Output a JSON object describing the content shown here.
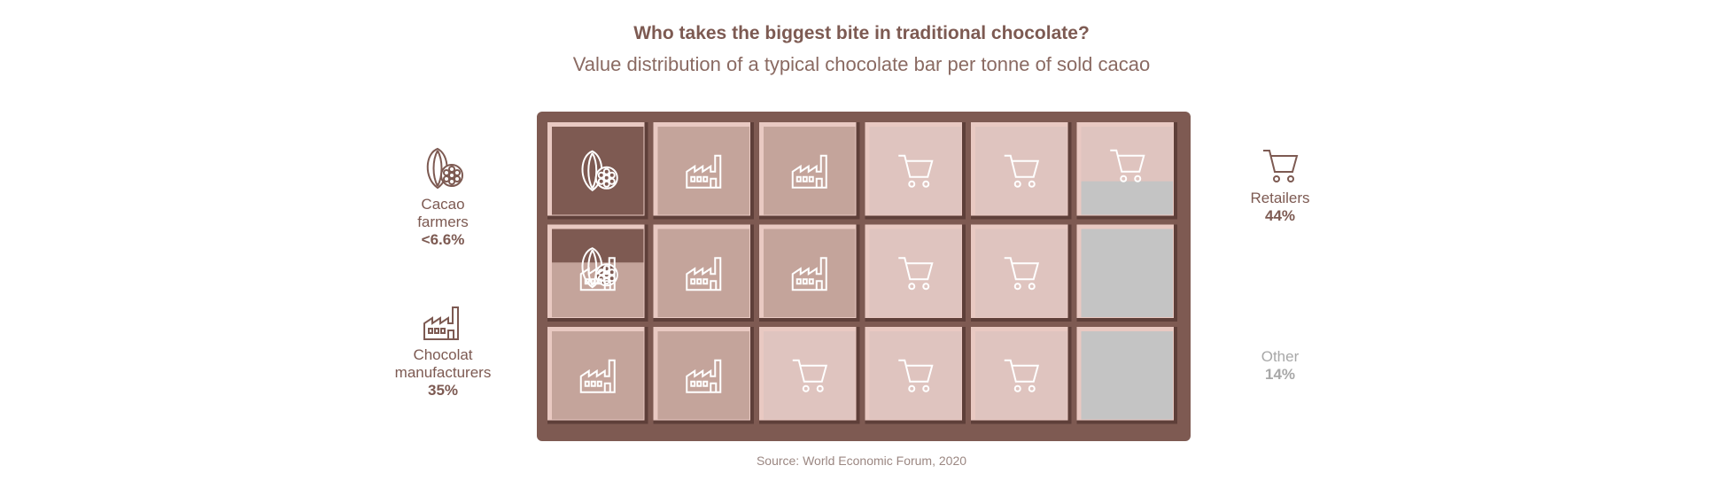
{
  "title": "Who takes the biggest bite in traditional chocolate?",
  "subtitle": "Value distribution of a typical chocolate bar per tonne of sold cacao",
  "source": "Source: World Economic Forum, 2020",
  "colors": {
    "bar_frame": "#7e5a52",
    "farmers": "#7e5a52",
    "manufacturers": "#c4a49b",
    "retailers": "#dfc4bf",
    "other": "#c4c4c4",
    "text": "#7d5a52",
    "other_text": "#a8a8a8"
  },
  "legend": {
    "farmers": {
      "icon": "cacao-pod-icon",
      "name": "Cacao\nfarmers",
      "value": "<6.6%"
    },
    "manufacturers": {
      "icon": "factory-icon",
      "name": "Chocolat\nmanufacturers",
      "value": "35%"
    },
    "retailers": {
      "icon": "shopping-cart-icon",
      "name": "Retailers",
      "value": "44%"
    },
    "other": {
      "name": "Other",
      "value": "14%"
    }
  },
  "chart_data": {
    "type": "waffle",
    "grid": {
      "rows": 3,
      "cols": 6
    },
    "series": [
      {
        "name": "Cacao farmers",
        "value": 6.6,
        "label": "<6.6%"
      },
      {
        "name": "Chocolat manufacturers",
        "value": 35,
        "label": "35%"
      },
      {
        "name": "Retailers",
        "value": 44,
        "label": "44%"
      },
      {
        "name": "Other",
        "value": 14,
        "label": "14%"
      }
    ],
    "cells": [
      [
        "farmers",
        "manufacturers",
        "manufacturers",
        "retailers",
        "retailers",
        "retailers/other"
      ],
      [
        "farmers/manufacturers",
        "manufacturers",
        "manufacturers",
        "retailers",
        "retailers",
        "other"
      ],
      [
        "manufacturers",
        "manufacturers",
        "retailers",
        "retailers",
        "retailers",
        "other"
      ]
    ]
  }
}
